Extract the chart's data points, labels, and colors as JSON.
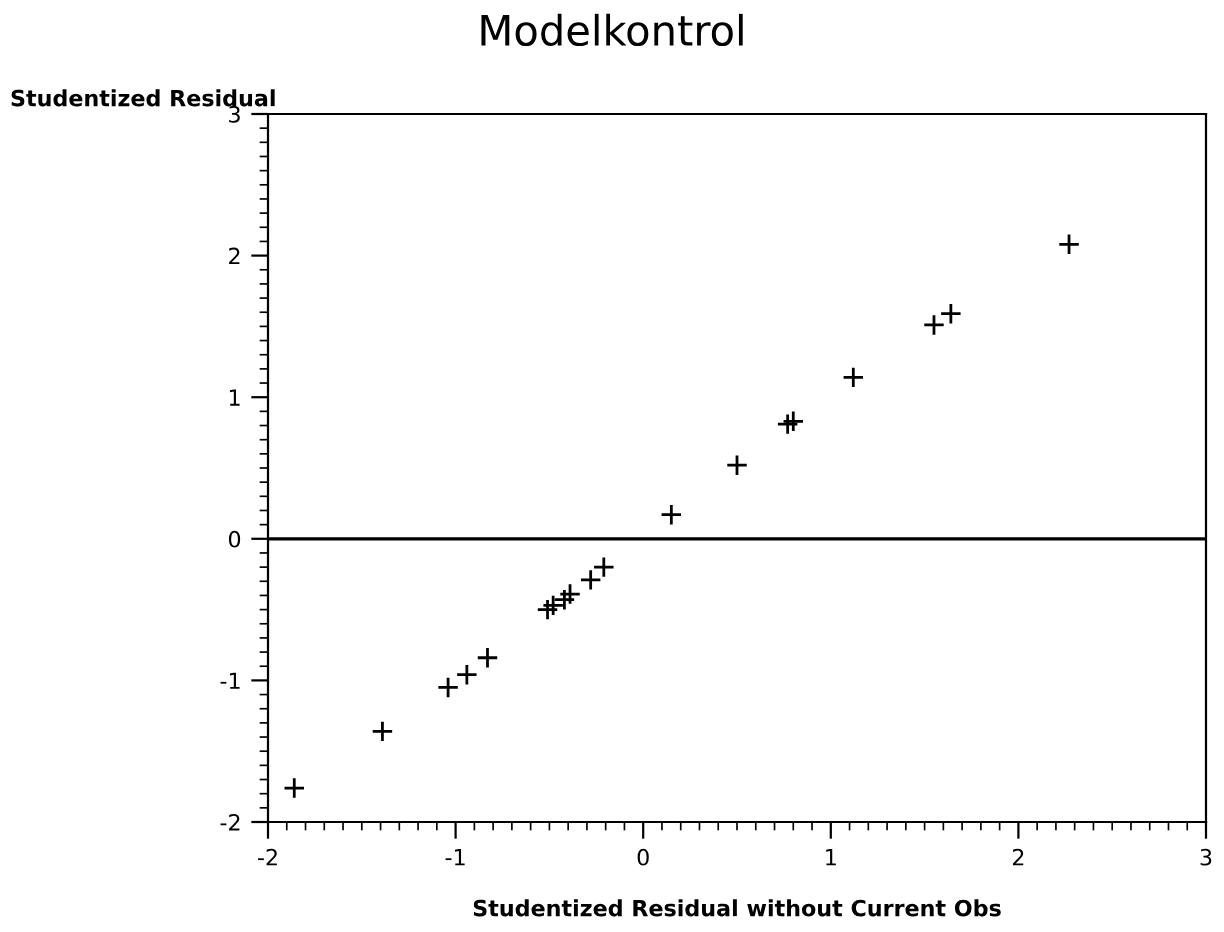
{
  "chart_data": {
    "type": "scatter",
    "title": "Modelkontrol",
    "xlabel": "Studentized Residual without Current Obs",
    "ylabel": "Studentized Residual",
    "x": [
      -1.86,
      -1.39,
      -1.04,
      -0.94,
      -0.83,
      -0.51,
      -0.48,
      -0.42,
      -0.39,
      -0.28,
      -0.21,
      0.15,
      0.5,
      0.77,
      0.8,
      1.12,
      1.55,
      1.64,
      2.27
    ],
    "series": [
      {
        "color": "#000000",
        "values": [
          -1.76,
          -1.36,
          -1.05,
          -0.96,
          -0.84,
          -0.5,
          -0.47,
          -0.43,
          -0.39,
          -0.29,
          -0.2,
          0.17,
          0.52,
          0.81,
          0.83,
          1.14,
          1.51,
          1.59,
          2.08
        ]
      }
    ],
    "xlim": [
      -2,
      3
    ],
    "ylim": [
      -2,
      3
    ],
    "xticks": [
      -2,
      -1,
      0,
      1,
      2,
      3
    ],
    "yticks": [
      -2,
      -1,
      0,
      1,
      2,
      3
    ],
    "ref_lines": [
      {
        "axis": "y",
        "value": 0,
        "color": "#000000"
      }
    ],
    "marker": "cross",
    "grid": false,
    "legend": false
  }
}
